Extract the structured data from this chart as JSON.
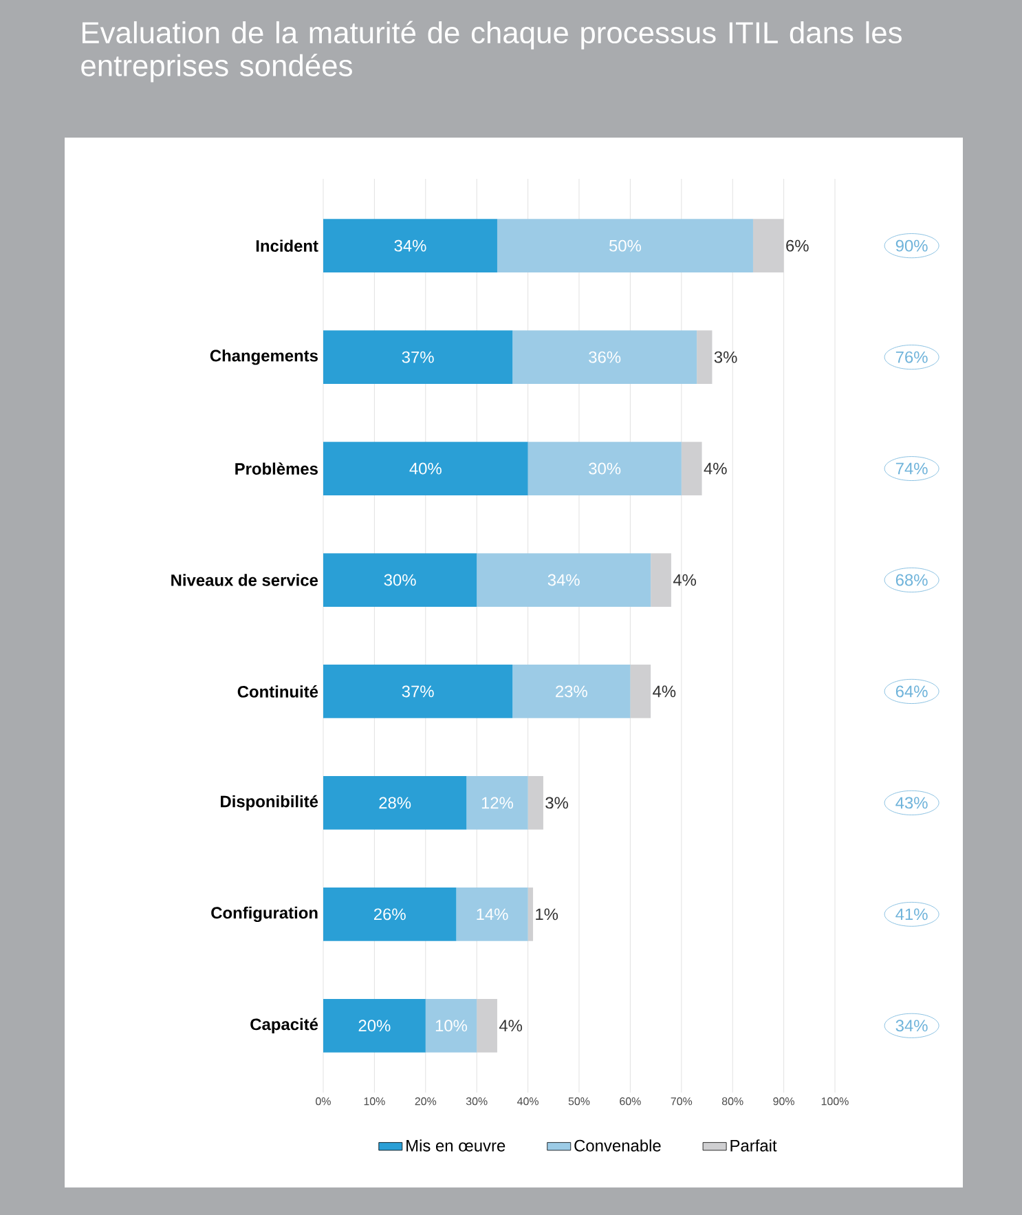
{
  "chart_data": {
    "type": "bar",
    "orientation": "horizontal",
    "stacked": true,
    "title": "Evaluation de la maturité de chaque processus ITIL dans les entreprises sondées",
    "categories": [
      "Incident",
      "Changements",
      "Problèmes",
      "Niveaux de service",
      "Continuité",
      "Disponibilité",
      "Configuration",
      "Capacité"
    ],
    "series": [
      {
        "name": "Mis en œuvre",
        "color": "#2a9fd6",
        "values": [
          34,
          37,
          40,
          30,
          37,
          28,
          26,
          20
        ],
        "value_labels": [
          "34%",
          "37%",
          "40%",
          "30%",
          "37%",
          "28%",
          "26%",
          "20%"
        ]
      },
      {
        "name": "Convenable",
        "color": "#9ccbe6",
        "values": [
          50,
          36,
          30,
          34,
          23,
          12,
          14,
          10
        ],
        "value_labels": [
          "50%",
          "36%",
          "30%",
          "34%",
          "23%",
          "12%",
          "14%",
          "10%"
        ]
      },
      {
        "name": "Parfait",
        "color": "#cfcfd1",
        "values": [
          6,
          3,
          4,
          4,
          4,
          3,
          1,
          4
        ],
        "value_labels": [
          "6%",
          "3%",
          "4%",
          "4%",
          "4%",
          "3%",
          "1%",
          "4%"
        ]
      }
    ],
    "annotations": [
      "90%",
      "76%",
      "74%",
      "68%",
      "64%",
      "43%",
      "41%",
      "34%"
    ],
    "xlim": [
      0,
      100
    ],
    "xticks": [
      {
        "value": 0,
        "label": "0%"
      },
      {
        "value": 10,
        "label": "10%"
      },
      {
        "value": 20,
        "label": "20%"
      },
      {
        "value": 30,
        "label": "30%"
      },
      {
        "value": 40,
        "label": "40%"
      },
      {
        "value": 50,
        "label": "50%"
      },
      {
        "value": 60,
        "label": "60%"
      },
      {
        "value": 70,
        "label": "70%"
      },
      {
        "value": 80,
        "label": "80%"
      },
      {
        "value": 90,
        "label": "90%"
      },
      {
        "value": 100,
        "label": "100%"
      }
    ],
    "grid": "x",
    "legend": "bottom"
  }
}
